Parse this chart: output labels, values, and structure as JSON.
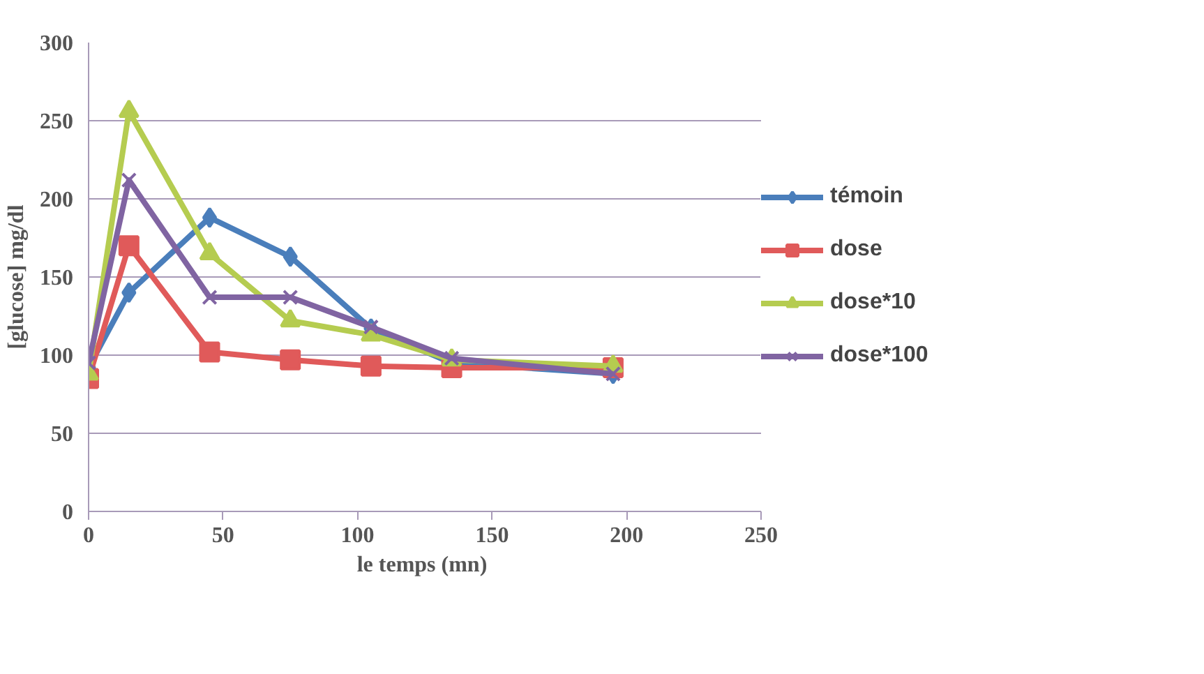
{
  "chart_data": {
    "type": "line",
    "xlabel": "le temps  (mn)",
    "ylabel": "[glucose] mg/dl",
    "x": [
      0,
      15,
      45,
      75,
      105,
      135,
      195
    ],
    "series": [
      {
        "name": "témoin",
        "color": "#4a7ebb",
        "marker": "diamond",
        "values": [
          92,
          140,
          188,
          163,
          117,
          95,
          88
        ]
      },
      {
        "name": "dose",
        "color": "#e05a5a",
        "marker": "square",
        "values": [
          85,
          170,
          102,
          97,
          93,
          92,
          92
        ]
      },
      {
        "name": "dose*10",
        "color": "#b5cc50",
        "marker": "triangle",
        "values": [
          88,
          256,
          165,
          122,
          113,
          97,
          93
        ]
      },
      {
        "name": "dose*100",
        "color": "#8064a2",
        "marker": "x",
        "values": [
          95,
          212,
          137,
          137,
          118,
          98,
          88
        ]
      }
    ],
    "xlim": [
      0,
      250
    ],
    "xticks": [
      0,
      50,
      100,
      150,
      200,
      250
    ],
    "ylim": [
      0,
      300
    ],
    "yticks": [
      0,
      50,
      100,
      150,
      200,
      250,
      300
    ],
    "grid": "y",
    "legend": "right"
  }
}
